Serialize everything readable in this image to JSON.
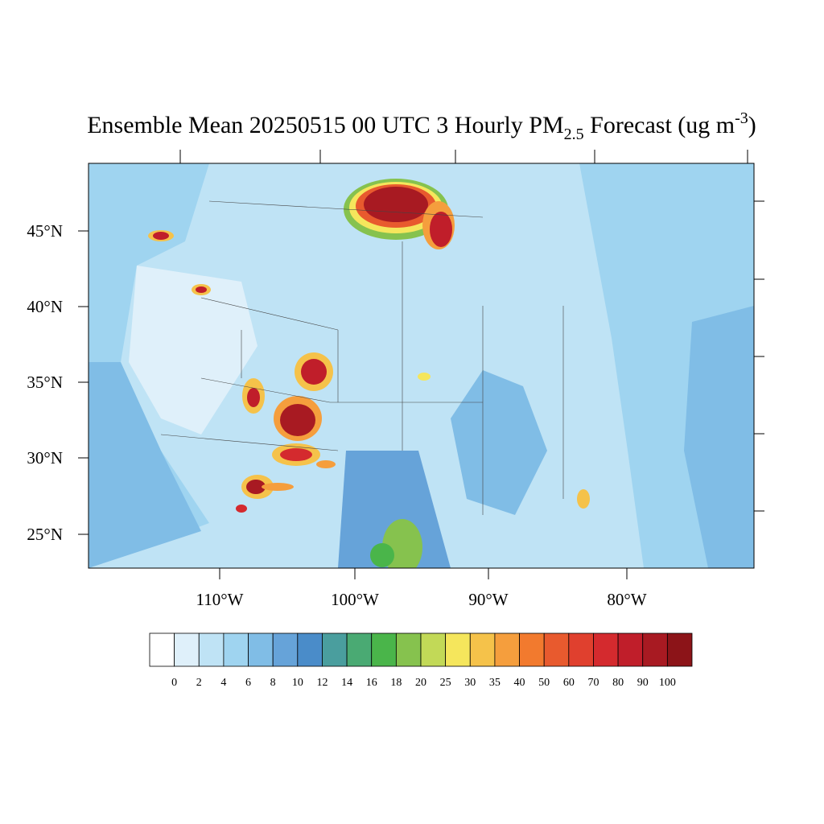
{
  "title": {
    "main": "Ensemble Mean 20250515 00 UTC 3 Hourly PM",
    "sub": "2.5",
    "middle": " Forecast (ug m",
    "sup": "-3",
    "end": ")"
  },
  "map": {
    "lat_labels": [
      "45°N",
      "40°N",
      "35°N",
      "30°N",
      "25°N"
    ],
    "lon_labels": [
      "110°W",
      "100°W",
      "90°W",
      "80°W"
    ]
  },
  "colorbar": {
    "levels": [
      0,
      2,
      4,
      6,
      8,
      10,
      12,
      14,
      16,
      18,
      20,
      25,
      30,
      35,
      40,
      50,
      60,
      70,
      80,
      90,
      100
    ],
    "colors": [
      "#ffffff",
      "#dff0fa",
      "#bfe3f5",
      "#9fd4f0",
      "#80bde6",
      "#66a3d9",
      "#4a8cc9",
      "#4a9e9e",
      "#4aaa73",
      "#4ab54a",
      "#86c24e",
      "#c2d957",
      "#f5e65c",
      "#f5c24a",
      "#f59e3d",
      "#f27a2e",
      "#e85a2e",
      "#e0402e",
      "#d42a2e",
      "#c01e2a",
      "#a81a22",
      "#8c1418"
    ]
  }
}
